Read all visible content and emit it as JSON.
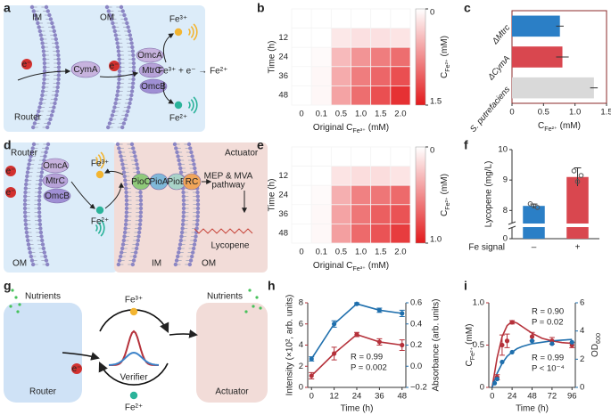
{
  "panel_labels": [
    "a",
    "b",
    "c",
    "d",
    "e",
    "f",
    "g",
    "h",
    "i"
  ],
  "diagram_a": {
    "membranes": [
      "IM",
      "OM"
    ],
    "proteins": [
      "CymA",
      "OmcA",
      "MtrC",
      "OmcB"
    ],
    "electron": "e⁻",
    "ions": [
      "Fe³⁺",
      "Fe²⁺"
    ],
    "reaction": "Fe³⁺ + e⁻ → Fe²⁺",
    "label": "Router"
  },
  "diagram_d": {
    "router": "Router",
    "actuator": "Actuator",
    "proteins": [
      "OmcA",
      "MtrC",
      "OmcB",
      "PioC",
      "PioA",
      "PioB",
      "RC"
    ],
    "ions": [
      "Fe³⁺",
      "Fe²⁺"
    ],
    "pathway": [
      "MEP & MVA",
      "pathway"
    ],
    "product": "Lycopene",
    "membranes": [
      "OM",
      "IM",
      "OM"
    ]
  },
  "diagram_g": {
    "nutrients": [
      "Nutrients",
      "Nutrients"
    ],
    "router": "Router",
    "actuator": "Actuator",
    "verifier": "Verifier",
    "ions": [
      "Fe³⁺",
      "Fe²⁺"
    ]
  },
  "chart_data": [
    {
      "type": "heatmap",
      "x_categories": [
        "0",
        "0.1",
        "0.5",
        "1.0",
        "1.5",
        "2.0"
      ],
      "y_categories": [
        null,
        "12",
        "24",
        "36",
        "48"
      ],
      "values": [
        [
          0,
          0,
          0,
          0,
          0,
          0
        ],
        [
          0,
          0,
          0.15,
          0.2,
          0.2,
          0.18
        ],
        [
          0,
          0.03,
          0.45,
          0.7,
          0.85,
          0.95
        ],
        [
          0,
          0.05,
          0.55,
          0.85,
          1.0,
          1.15
        ],
        [
          0,
          0.05,
          0.6,
          0.95,
          1.15,
          1.35
        ]
      ],
      "colorbar": {
        "lim": [
          0,
          1.5
        ],
        "ticks": [
          0,
          1.5
        ],
        "colors": [
          "#ffffff",
          "#e31a1c"
        ]
      },
      "colorbar_label": [
        "C",
        "Fe²⁺",
        " (mM)"
      ],
      "x_label": [
        "Original C",
        "Fe³⁺",
        " (mM)"
      ],
      "y_label": "Time (h)"
    },
    {
      "type": "hbar",
      "categories": [
        "ΔMtrc",
        "ΔCymA",
        "S. putrefaciens"
      ],
      "values": [
        0.76,
        0.8,
        1.3
      ],
      "errors": [
        0.06,
        0.1,
        0.06
      ],
      "colors": [
        "#2b7fc6",
        "#d9474f",
        "#d9d9d9"
      ],
      "xlim": [
        0,
        1.5
      ],
      "xticks": [
        0,
        0.5,
        {
          "value": 1,
          "label": "1.0"
        },
        1.5
      ],
      "x_label": [
        "C",
        "Fe²⁺",
        " (mM)"
      ]
    },
    {
      "type": "heatmap",
      "x_categories": [
        "0",
        "0.1",
        "0.5",
        "1.0",
        "1.5",
        "2.0"
      ],
      "y_categories": [
        null,
        "12",
        "24",
        "36",
        "48"
      ],
      "values": [
        [
          0,
          0,
          0,
          0,
          0,
          0
        ],
        [
          0,
          0,
          0.12,
          0.15,
          0.15,
          0.12
        ],
        [
          0,
          0.02,
          0.35,
          0.55,
          0.6,
          0.65
        ],
        [
          0,
          0.03,
          0.4,
          0.6,
          0.7,
          0.75
        ],
        [
          0,
          0.03,
          0.42,
          0.65,
          0.75,
          0.85
        ]
      ],
      "colorbar": {
        "lim": [
          0,
          1
        ],
        "ticks": [
          0,
          {
            "value": 1,
            "label": "1.0"
          }
        ],
        "colors": [
          "#ffffff",
          "#e31a1c"
        ]
      },
      "colorbar_label": [
        "C",
        "Fe²⁺",
        " (mM)"
      ],
      "x_label": [
        "Original C",
        "Fe³⁺",
        " (mM)"
      ],
      "y_label": "Time (h)"
    },
    {
      "type": "bar",
      "categories": [
        "–",
        "+"
      ],
      "category_label": "Fe signal",
      "values": [
        8.15,
        9.1
      ],
      "errors": [
        0.06,
        0.3
      ],
      "points": [
        [
          8.22,
          8.15,
          8.1
        ],
        [
          9.3,
          8.95,
          9.15
        ]
      ],
      "colors": [
        "#2b7fc6",
        "#d9474f"
      ],
      "ylim": [
        7.6,
        10
      ],
      "yticks": [
        0,
        8,
        9,
        10
      ],
      "axis_break": true,
      "y_label": "Lycopene (mg/L)"
    },
    {
      "type": "line",
      "x": [
        0,
        12,
        24,
        36,
        48
      ],
      "xlim": [
        -2,
        50
      ],
      "xticks": [
        0,
        12,
        24,
        36,
        48
      ],
      "x_label": "Time (h)",
      "series": [
        {
          "color": "#b5313a",
          "values": [
            1.1,
            3.2,
            5.0,
            4.3,
            4.0
          ],
          "errors": [
            0.3,
            0.6,
            0.2,
            0.3,
            0.5
          ]
        },
        {
          "color": "#1f6fad",
          "axis": "y2",
          "values": [
            0.07,
            0.4,
            0.59,
            0.53,
            0.5
          ],
          "errors": [
            0.02,
            0.03,
            0.01,
            0.02,
            0.03
          ]
        }
      ],
      "ylim": [
        0,
        8
      ],
      "yticks": [
        0,
        2,
        4,
        6,
        8
      ],
      "y_label": "Intensity (×10², arb. units)",
      "y2lim": [
        -0.2,
        0.6
      ],
      "y2ticks": [
        {
          "value": -0.2,
          "label": "−0.2"
        },
        {
          "value": 0,
          "label": "0.0"
        },
        0.2,
        0.4,
        0.6
      ],
      "y2_label": "Absorbance (arb. units)",
      "annotations": [
        "R = 0.99",
        "P = 0.002"
      ]
    },
    {
      "type": "scatter_fit",
      "xlim": [
        -4,
        100
      ],
      "xticks": [
        0,
        24,
        48,
        72,
        96
      ],
      "x_label": "Time (h)",
      "series": [
        {
          "color": "#b5313a",
          "x": [
            6,
            12,
            18,
            24,
            48,
            72,
            96
          ],
          "values": [
            0.12,
            0.5,
            0.55,
            0.77,
            0.6,
            0.55,
            0.5
          ],
          "errors": [
            0.03,
            0.12,
            0.08,
            0.02,
            0.05,
            0.04,
            0.03
          ]
        },
        {
          "color": "#1f6fad",
          "axis": "y2",
          "x": [
            3,
            6,
            12,
            24,
            48,
            72,
            96
          ],
          "values": [
            0.3,
            0.6,
            1.8,
            2.5,
            3.3,
            3.1,
            3.2
          ]
        }
      ],
      "fits": [
        {
          "color": "#b5313a",
          "x": [
            0,
            6,
            12,
            18,
            24,
            30,
            36,
            48,
            60,
            72,
            84,
            96
          ],
          "values": [
            0,
            0.35,
            0.6,
            0.73,
            0.78,
            0.76,
            0.72,
            0.64,
            0.58,
            0.55,
            0.53,
            0.52
          ]
        },
        {
          "color": "#1f6fad",
          "axis": "y2",
          "x": [
            0,
            6,
            12,
            18,
            24,
            30,
            36,
            48,
            60,
            72,
            84,
            96
          ],
          "values": [
            0,
            1.0,
            1.7,
            2.2,
            2.5,
            2.75,
            2.9,
            3.1,
            3.2,
            3.3,
            3.35,
            3.4
          ]
        }
      ],
      "ylim": [
        0,
        1
      ],
      "yticks": [
        0,
        0.5,
        {
          "value": 1,
          "label": "1.0"
        }
      ],
      "y_label": [
        "C",
        "Fe²⁺",
        " (mM)"
      ],
      "y2lim": [
        0,
        6
      ],
      "y2ticks": [
        0,
        2,
        4,
        6
      ],
      "y2_label": [
        "OD",
        "600"
      ],
      "annotations": [
        {
          "text": "R = 0.90",
          "color": "#b5313a"
        },
        {
          "text": "P = 0.02",
          "color": "#b5313a"
        },
        {
          "text": "R = 0.99",
          "color": "#1f6fad"
        },
        {
          "text": "P < 10⁻⁴",
          "color": "#1f6fad"
        }
      ]
    }
  ]
}
